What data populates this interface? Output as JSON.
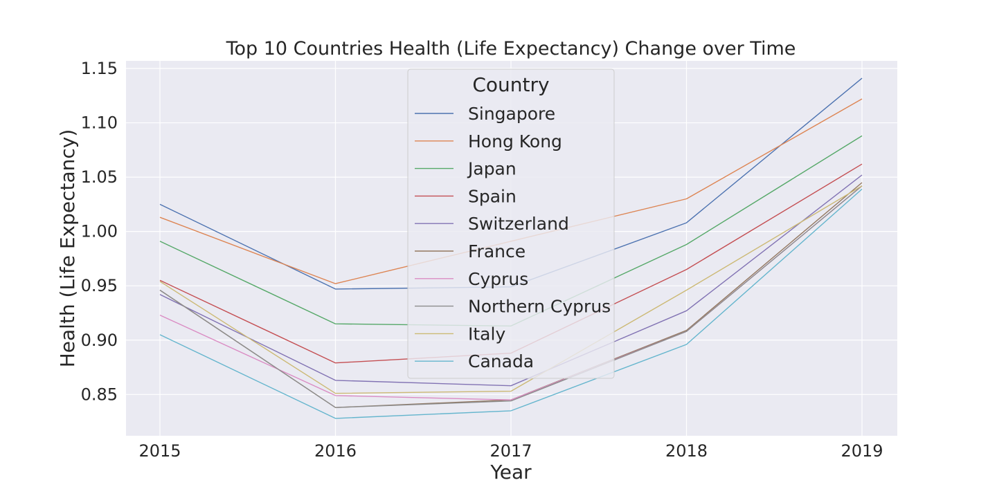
{
  "chart_data": {
    "type": "line",
    "title": "Top 10 Countries Health (Life Expectancy) Change over Time",
    "xlabel": "Year",
    "ylabel": "Health (Life Expectancy)",
    "x": [
      "2015",
      "2016",
      "2017",
      "2018",
      "2019"
    ],
    "ylim": [
      0.812,
      1.157
    ],
    "yticks": [
      "0.85",
      "0.90",
      "0.95",
      "1.00",
      "1.05",
      "1.10",
      "1.15"
    ],
    "grid": true,
    "legend": {
      "title": "Country",
      "placement": "upper-center"
    },
    "series": [
      {
        "name": "Singapore",
        "color": "#4c72b0",
        "values": [
          1.025,
          0.947,
          0.949,
          1.008,
          1.141
        ]
      },
      {
        "name": "Hong Kong",
        "color": "#dd8452",
        "values": [
          1.013,
          0.952,
          0.991,
          1.03,
          1.122
        ]
      },
      {
        "name": "Japan",
        "color": "#55a868",
        "values": [
          0.991,
          0.915,
          0.913,
          0.988,
          1.088
        ]
      },
      {
        "name": "Spain",
        "color": "#c44e52",
        "values": [
          0.955,
          0.879,
          0.888,
          0.965,
          1.062
        ]
      },
      {
        "name": "Switzerland",
        "color": "#8172b3",
        "values": [
          0.942,
          0.863,
          0.858,
          0.927,
          1.052
        ]
      },
      {
        "name": "France",
        "color": "#937860",
        "values": [
          0.946,
          0.838,
          0.845,
          0.909,
          1.045
        ]
      },
      {
        "name": "Cyprus",
        "color": "#da8bc3",
        "values": [
          0.923,
          0.849,
          0.845,
          0.908,
          1.042
        ]
      },
      {
        "name": "Northern Cyprus",
        "color": "#8c8c8c",
        "values": [
          0.946,
          0.838,
          0.844,
          0.908,
          1.042
        ]
      },
      {
        "name": "Italy",
        "color": "#ccb974",
        "values": [
          0.954,
          0.851,
          0.853,
          0.946,
          1.042
        ]
      },
      {
        "name": "Canada",
        "color": "#64b5cd",
        "values": [
          0.905,
          0.828,
          0.835,
          0.896,
          1.039
        ]
      }
    ]
  }
}
